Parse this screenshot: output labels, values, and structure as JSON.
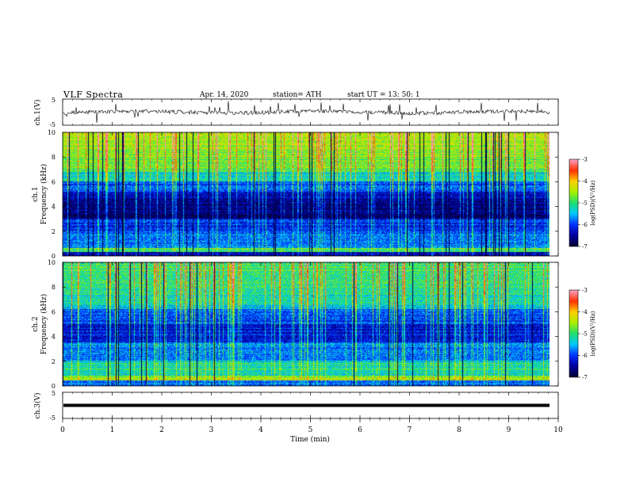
{
  "header": {
    "title": "VLF  Spectra",
    "date": "Apr. 14, 2020",
    "station": "station= ATH",
    "start": "start  UT  =   13: 50: 1"
  },
  "chart_data": [
    {
      "type": "line",
      "ylabel": "ch.1(V)",
      "ylim": [
        -5,
        5
      ],
      "yticks": [
        "5",
        "-5"
      ],
      "description_none": "",
      "xlim": [
        0,
        10
      ]
    },
    {
      "type": "heatmap",
      "ylabel": "ch.1\nFrequency (kHz)",
      "ylabel_line1": "ch.1",
      "ylabel_line2": "Frequency  (kHz)",
      "ylim": [
        0,
        10
      ],
      "yticks": [
        "0",
        "2",
        "4",
        "6",
        "8",
        "10"
      ],
      "xlim": [
        0,
        10
      ],
      "colorbar": {
        "label": "log(PSD)(V²/Hz)",
        "range": [
          -7,
          -3
        ],
        "ticks": [
          "-3",
          "-4",
          "-5",
          "-6",
          "-7"
        ]
      }
    },
    {
      "type": "heatmap",
      "ylabel_line1": "ch.2",
      "ylabel_line2": "Frequency  (kHz)",
      "ylim": [
        0,
        10
      ],
      "yticks": [
        "0",
        "2",
        "4",
        "6",
        "8",
        "10"
      ],
      "xlim": [
        0,
        10
      ],
      "colorbar": {
        "label": "log(PSD)(V²/Hz)",
        "range": [
          -7,
          -3
        ],
        "ticks": [
          "-3",
          "-4",
          "-5",
          "-6",
          "-7"
        ]
      }
    },
    {
      "type": "line",
      "ylabel": "ch.3(V)",
      "ylim": [
        -5,
        5
      ],
      "yticks": [
        "5",
        "-5"
      ],
      "xlim": [
        0,
        10
      ],
      "xlabel": "Time  (min)",
      "xticks": [
        "0",
        "1",
        "2",
        "3",
        "4",
        "5",
        "6",
        "7",
        "8",
        "9",
        "10"
      ]
    }
  ],
  "colors": {
    "frame": "#000000",
    "colormap": [
      "#000033",
      "#0000a0",
      "#0030ff",
      "#00c8ff",
      "#20e070",
      "#a8f000",
      "#ffd000",
      "#ff3000",
      "#ff9fc0"
    ]
  }
}
